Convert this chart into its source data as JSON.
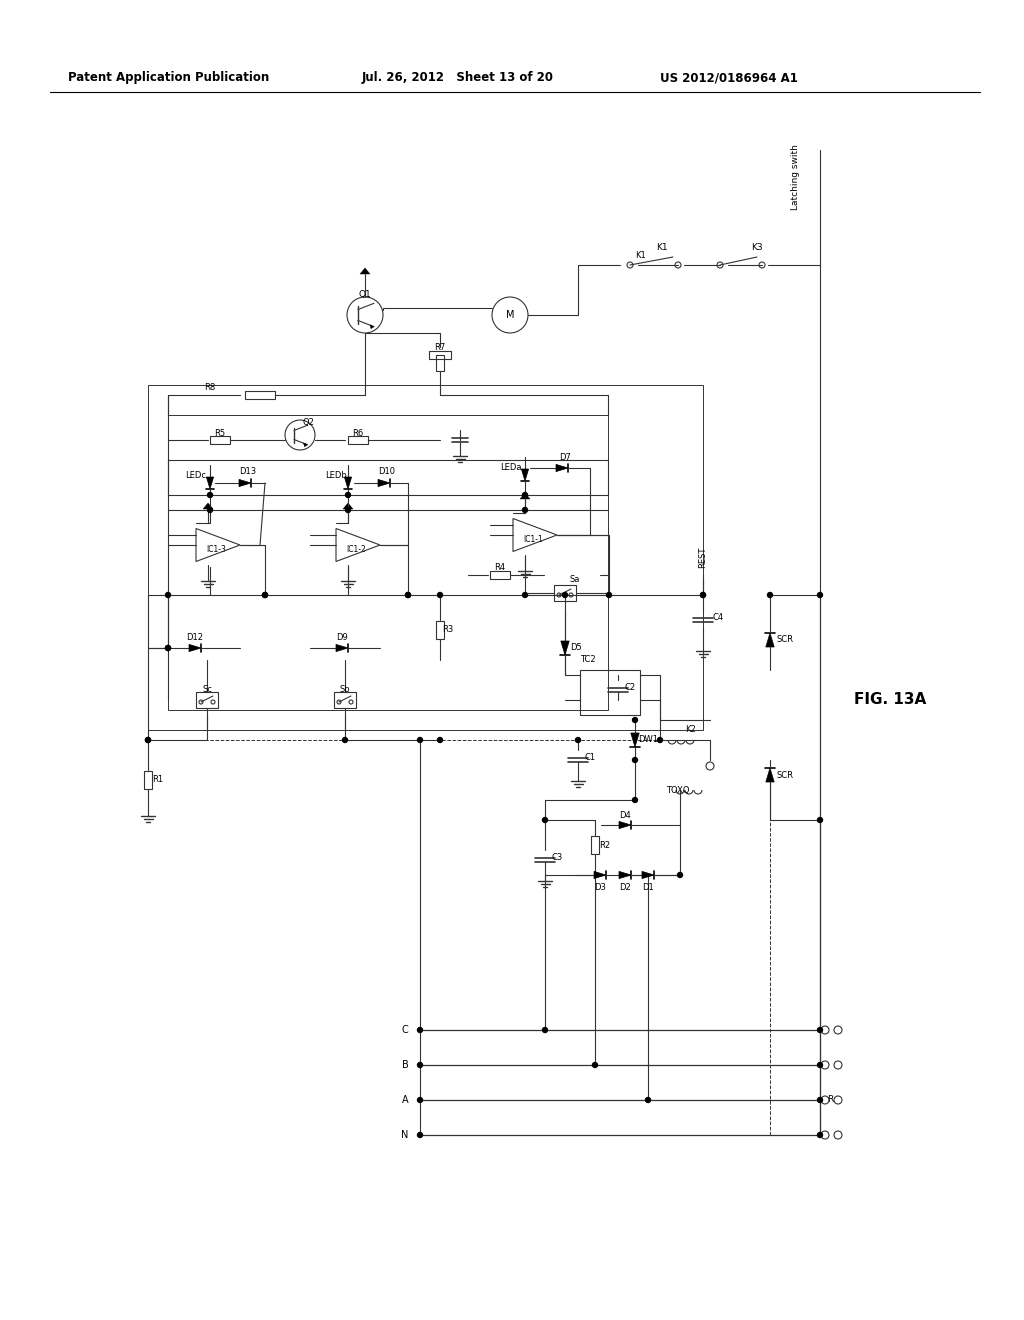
{
  "bg_color": "#ffffff",
  "header_left": "Patent Application Publication",
  "header_mid": "Jul. 26, 2012   Sheet 13 of 20",
  "header_right": "US 2012/0186964 A1",
  "fig_label": "FIG. 13A"
}
